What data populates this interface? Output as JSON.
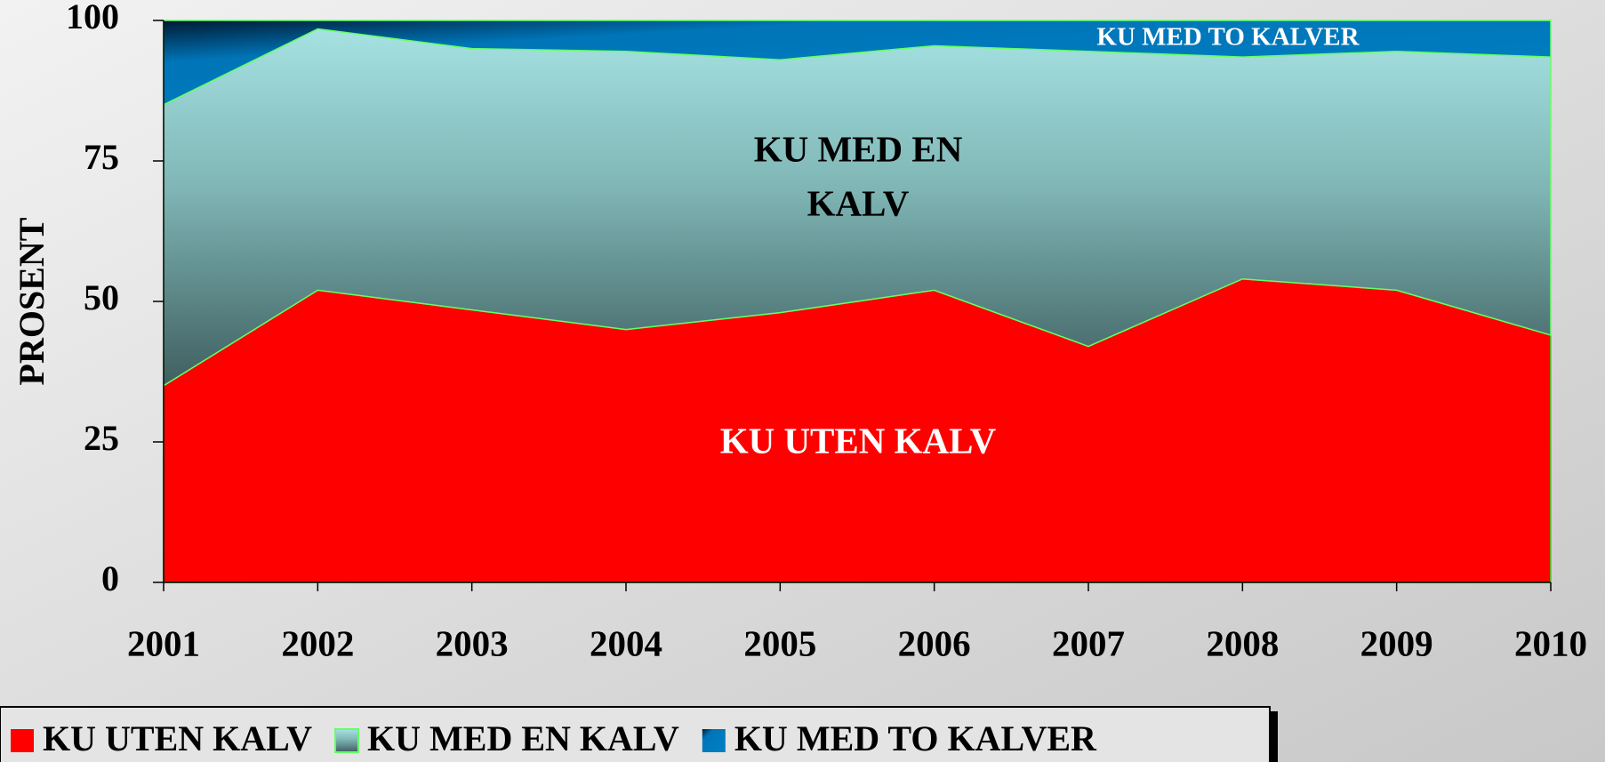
{
  "chart_data": {
    "type": "stacked_area",
    "ylabel": "PROSENT",
    "categories": [
      "2001",
      "2002",
      "2003",
      "2004",
      "2005",
      "2006",
      "2007",
      "2008",
      "2009",
      "2010"
    ],
    "series": [
      {
        "name": "KU UTEN KALV",
        "color": "#ff0000",
        "values": [
          35,
          52,
          48.5,
          45,
          48,
          52,
          42,
          54,
          52,
          44
        ]
      },
      {
        "name": "KU MED EN KALV",
        "color": "#8fcfcf",
        "values": [
          50,
          46.5,
          46.5,
          49.5,
          45,
          43.5,
          52.5,
          39.5,
          42.5,
          49.5
        ]
      },
      {
        "name": "KU MED TO KALVER",
        "color": "#0070b0",
        "values": [
          15,
          1.5,
          5,
          5.5,
          7,
          4.5,
          5.5,
          6.5,
          5.5,
          6.5
        ]
      }
    ],
    "ylim": [
      0,
      100
    ],
    "yticks": [
      0,
      25,
      50,
      75,
      100
    ],
    "legend": "bottom-left",
    "annotations": [
      {
        "lines": [
          "KU UTEN KALV"
        ],
        "color": "#ffffff"
      },
      {
        "lines": [
          "KU MED EN",
          "KALV"
        ],
        "color": "#000000"
      },
      {
        "lines": [
          "KU MED TO KALVER"
        ],
        "color": "#ffffff"
      }
    ]
  }
}
